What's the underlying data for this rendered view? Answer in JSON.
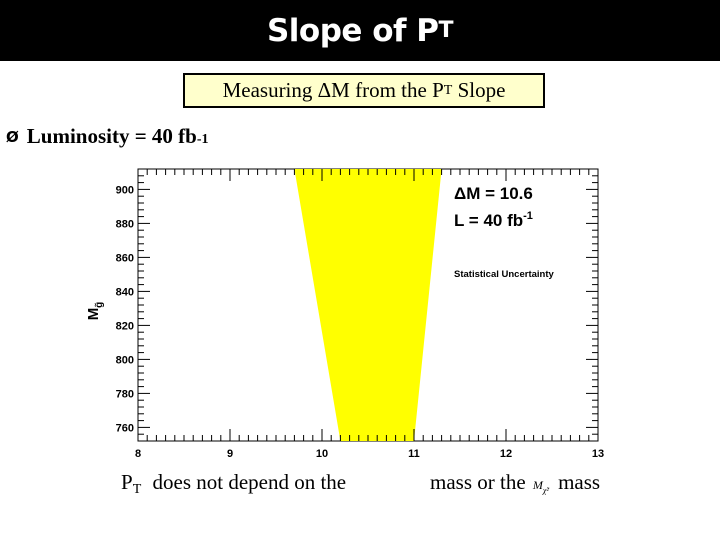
{
  "slide": {
    "title_main": "Slope of P",
    "title_sub": "T",
    "subtitle_before": "Measuring ",
    "subtitle_delta": "Δ",
    "subtitle_mid": "M from the P",
    "subtitle_sub": "T",
    "subtitle_after": " Slope",
    "bullet_marker": "Ø",
    "bullet_text": "Luminosity = 40 fb",
    "bullet_sup": "-1",
    "caption_p": "P",
    "caption_t": "T",
    "caption_part1": "does not depend on the",
    "caption_part2": "mass or the",
    "caption_symbol_m": "M",
    "caption_symbol_sub": "χ̃²",
    "caption_part3": "mass"
  },
  "chart_data": {
    "type": "area",
    "x_ticks": [
      "8",
      "9",
      "10",
      "11",
      "12",
      "13"
    ],
    "y_ticks": [
      "900",
      "880",
      "860",
      "840",
      "820",
      "800",
      "780",
      "760"
    ],
    "xlim": [
      8,
      13
    ],
    "ylim": [
      752,
      912
    ],
    "ylabel": "M",
    "ylabel_sub": "g̃",
    "band_color": "#ffff00",
    "band": {
      "upper": {
        "y": 912,
        "x_low": 9.7,
        "x_high": 11.3
      },
      "lower": {
        "y": 752,
        "x_low": 10.2,
        "x_high": 11.0
      }
    },
    "annotations": {
      "line1": "ΔM = 10.6",
      "line2": "L = 40 fb",
      "line2_sup": "-1",
      "line3": "Statistical Uncertainty"
    }
  }
}
